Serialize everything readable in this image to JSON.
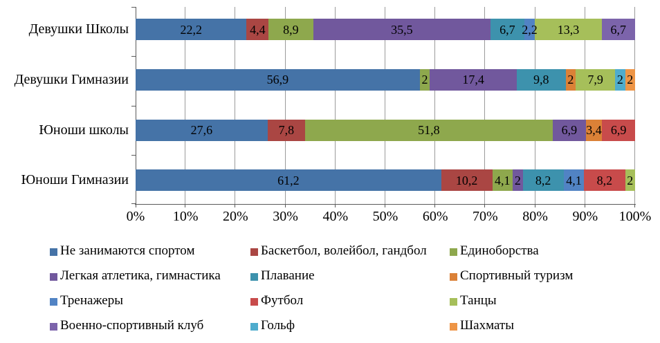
{
  "chart_data": {
    "type": "bar",
    "variant": "horizontal-stacked-percent",
    "title": "",
    "xlabel": "",
    "ylabel": "",
    "xlim": [
      0,
      100
    ],
    "grid": "vertical-gridlines",
    "legend_position": "bottom",
    "value_decimal_separator": ",",
    "categories": [
      "Девушки Школы",
      "Девушки Гимназии",
      "Юноши школы",
      "Юноши Гимназии"
    ],
    "x_ticks": [
      "0%",
      "10%",
      "20%",
      "30%",
      "40%",
      "50%",
      "60%",
      "70%",
      "80%",
      "90%",
      "100%"
    ],
    "series": [
      {
        "name": "Не занимаются спортом",
        "color": "#4573A7",
        "values": [
          22.2,
          56.9,
          27.6,
          61.2
        ]
      },
      {
        "name": "Баскетбол, волейбол, гандбол",
        "color": "#AA4643",
        "values": [
          4.4,
          0,
          7.8,
          10.2
        ]
      },
      {
        "name": "Единоборства",
        "color": "#8EA84D",
        "values": [
          8.9,
          2,
          51.8,
          4.1
        ]
      },
      {
        "name": "Легкая атлетика, гимнастика",
        "color": "#71589D",
        "values": [
          35.5,
          17.4,
          6.9,
          2
        ]
      },
      {
        "name": "Плавание",
        "color": "#3D92AD",
        "values": [
          6.7,
          9.8,
          0,
          8.2
        ]
      },
      {
        "name": "Спортивный туризм",
        "color": "#DB8137",
        "values": [
          0,
          2,
          3.4,
          0
        ]
      },
      {
        "name": "Тренажеры",
        "color": "#5183C4",
        "values": [
          2.2,
          0,
          0,
          4.1
        ]
      },
      {
        "name": "Футбол",
        "color": "#C84B4B",
        "values": [
          0,
          0,
          6.9,
          8.2
        ]
      },
      {
        "name": "Танцы",
        "color": "#A6BF5A",
        "values": [
          13.3,
          7.9,
          0,
          2
        ]
      },
      {
        "name": "Военно-спортивный клуб",
        "color": "#7C64AB",
        "values": [
          6.7,
          0,
          0,
          0
        ]
      },
      {
        "name": "Гольф",
        "color": "#4FACCD",
        "values": [
          0,
          2,
          0,
          0
        ]
      },
      {
        "name": "Шахматы",
        "color": "#EE9546",
        "values": [
          0,
          2,
          0,
          0
        ]
      }
    ]
  },
  "colors": {
    "background": "#ffffff",
    "gridline": "#9a9a9a",
    "axis": "#595959",
    "label_text": "#000000"
  }
}
